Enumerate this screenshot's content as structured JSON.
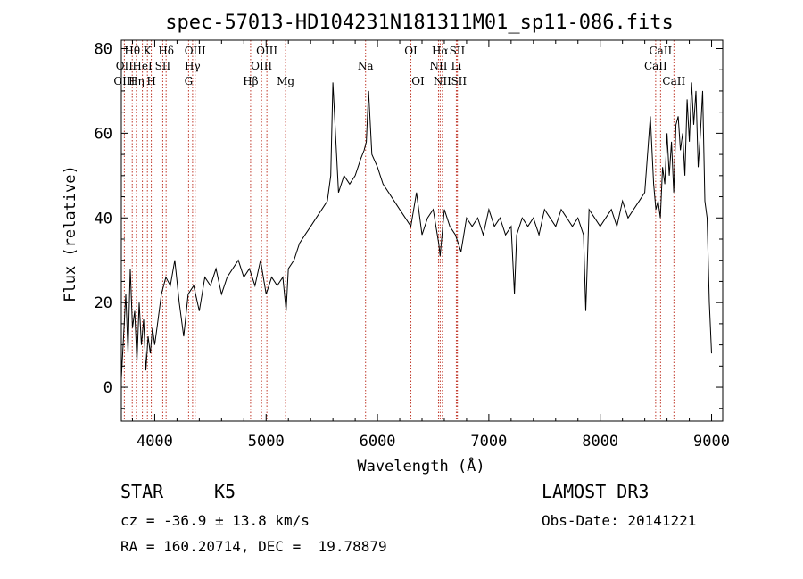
{
  "chart_data": {
    "type": "line",
    "title": "spec-57013-HD104231N181311M01_sp11-086.fits",
    "xlabel": "Wavelength (Å)",
    "ylabel": "Flux (relative)",
    "xlim": [
      3700,
      9100
    ],
    "ylim": [
      -8,
      82
    ],
    "xticks": [
      4000,
      5000,
      6000,
      7000,
      8000,
      9000
    ],
    "yticks": [
      0,
      20,
      40,
      60,
      80
    ],
    "series": [
      {
        "name": "flux",
        "x": [
          3700,
          3720,
          3740,
          3760,
          3780,
          3800,
          3820,
          3840,
          3860,
          3880,
          3900,
          3920,
          3940,
          3960,
          3980,
          4000,
          4030,
          4060,
          4100,
          4140,
          4180,
          4220,
          4260,
          4300,
          4350,
          4400,
          4450,
          4500,
          4550,
          4600,
          4650,
          4700,
          4750,
          4800,
          4850,
          4900,
          4950,
          5000,
          5050,
          5100,
          5150,
          5180,
          5200,
          5250,
          5300,
          5350,
          5400,
          5450,
          5500,
          5550,
          5580,
          5600,
          5650,
          5700,
          5750,
          5800,
          5850,
          5880,
          5900,
          5920,
          5950,
          6000,
          6050,
          6100,
          6150,
          6200,
          6250,
          6300,
          6350,
          6400,
          6450,
          6500,
          6550,
          6563,
          6600,
          6650,
          6700,
          6750,
          6800,
          6850,
          6900,
          6950,
          7000,
          7050,
          7100,
          7150,
          7200,
          7230,
          7250,
          7300,
          7350,
          7400,
          7450,
          7500,
          7550,
          7600,
          7650,
          7700,
          7750,
          7800,
          7850,
          7870,
          7900,
          7950,
          8000,
          8050,
          8100,
          8150,
          8200,
          8250,
          8300,
          8350,
          8400,
          8450,
          8480,
          8500,
          8520,
          8540,
          8560,
          8580,
          8600,
          8620,
          8640,
          8660,
          8680,
          8700,
          8720,
          8740,
          8760,
          8780,
          8800,
          8820,
          8840,
          8860,
          8880,
          8900,
          8920,
          8940,
          8960,
          8980,
          9000
        ],
        "y": [
          2,
          12,
          22,
          8,
          28,
          14,
          18,
          6,
          20,
          10,
          16,
          4,
          12,
          8,
          14,
          10,
          16,
          22,
          26,
          24,
          30,
          20,
          12,
          22,
          24,
          18,
          26,
          24,
          28,
          22,
          26,
          28,
          30,
          26,
          28,
          24,
          30,
          22,
          26,
          24,
          26,
          18,
          28,
          30,
          34,
          36,
          38,
          40,
          42,
          44,
          50,
          72,
          46,
          50,
          48,
          50,
          54,
          56,
          58,
          70,
          55,
          52,
          48,
          46,
          44,
          42,
          40,
          38,
          46,
          36,
          40,
          42,
          34,
          31,
          42,
          38,
          36,
          32,
          40,
          38,
          40,
          36,
          42,
          38,
          40,
          36,
          38,
          22,
          36,
          40,
          38,
          40,
          36,
          42,
          40,
          38,
          42,
          40,
          38,
          40,
          36,
          18,
          42,
          40,
          38,
          40,
          42,
          38,
          44,
          40,
          42,
          44,
          46,
          64,
          48,
          42,
          44,
          40,
          52,
          48,
          60,
          50,
          58,
          46,
          62,
          64,
          56,
          60,
          50,
          68,
          58,
          72,
          62,
          70,
          52,
          60,
          70,
          44,
          40,
          20,
          8
        ]
      }
    ],
    "spectral_lines": [
      {
        "label": "Hθ",
        "x": 3798,
        "row": 1
      },
      {
        "label": "OII",
        "x": 3727,
        "row": 2
      },
      {
        "label": "OIII",
        "x": 3727,
        "row": 3
      },
      {
        "label": "K",
        "x": 3934,
        "row": 1
      },
      {
        "label": "HeI",
        "x": 3889,
        "row": 2
      },
      {
        "label": "Hη",
        "x": 3835,
        "row": 3
      },
      {
        "label": "SII",
        "x": 4072,
        "row": 2
      },
      {
        "label": "H",
        "x": 3969,
        "row": 3
      },
      {
        "label": "Hδ",
        "x": 4102,
        "row": 1
      },
      {
        "label": "OIII",
        "x": 4363,
        "row": 1
      },
      {
        "label": "Hγ",
        "x": 4340,
        "row": 2
      },
      {
        "label": "G",
        "x": 4304,
        "row": 3
      },
      {
        "label": "OIII",
        "x": 5007,
        "row": 1
      },
      {
        "label": "OIII",
        "x": 4959,
        "row": 2
      },
      {
        "label": "Hβ",
        "x": 4861,
        "row": 3
      },
      {
        "label": "Mg",
        "x": 5175,
        "row": 3
      },
      {
        "label": "Na",
        "x": 5893,
        "row": 2
      },
      {
        "label": "OI",
        "x": 6300,
        "row": 1
      },
      {
        "label": "OI",
        "x": 6364,
        "row": 3
      },
      {
        "label": "Hα",
        "x": 6563,
        "row": 1
      },
      {
        "label": "SII",
        "x": 6716,
        "row": 1
      },
      {
        "label": "NII",
        "x": 6548,
        "row": 2
      },
      {
        "label": "Li",
        "x": 6708,
        "row": 2
      },
      {
        "label": "NII",
        "x": 6583,
        "row": 3
      },
      {
        "label": "SII",
        "x": 6731,
        "row": 3
      },
      {
        "label": "CaII",
        "x": 8542,
        "row": 1
      },
      {
        "label": "CaII",
        "x": 8498,
        "row": 2
      },
      {
        "label": "CaII",
        "x": 8662,
        "row": 3
      }
    ],
    "spectral_line_positions": [
      3727,
      3798,
      3835,
      3889,
      3934,
      3969,
      4072,
      4102,
      4304,
      4340,
      4363,
      4861,
      4959,
      5007,
      5175,
      5893,
      6300,
      6364,
      6548,
      6563,
      6583,
      6708,
      6716,
      6731,
      8498,
      8542,
      8662
    ]
  },
  "info": {
    "object_class": "STAR",
    "subclass": "K5",
    "survey": "LAMOST DR3",
    "cz": "cz = -36.9 ± 13.8 km/s",
    "obs_date": "Obs-Date: 20141221",
    "radec": "RA = 160.20714, DEC =  19.78879"
  },
  "colors": {
    "line_marker": "#c0392b",
    "spectrum": "#000000"
  }
}
